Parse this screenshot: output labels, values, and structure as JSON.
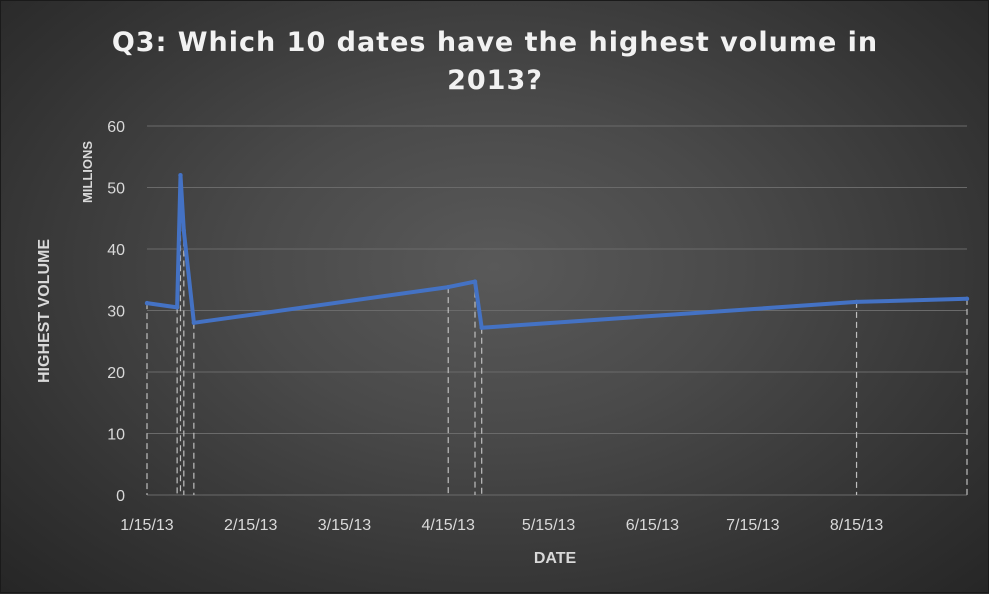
{
  "chart_data": {
    "type": "line",
    "title_lines": [
      "Q3: Which 10 dates have the highest volume in",
      "2013?"
    ],
    "xlabel": "DATE",
    "ylabel": "HIGHEST VOLUME",
    "y_units": "MILLIONS",
    "ylim": [
      0,
      60
    ],
    "y_ticks": [
      0,
      10,
      20,
      30,
      40,
      50,
      60
    ],
    "x_ticks": [
      "1/15/13",
      "2/15/13",
      "3/15/13",
      "4/15/13",
      "5/15/13",
      "6/15/13",
      "7/15/13",
      "8/15/13"
    ],
    "grid": "horizontal",
    "drop_lines": true,
    "colors": {
      "series": "#4472c4",
      "background": "#404040",
      "text": "#d9d9d9"
    },
    "series": [
      {
        "points": [
          {
            "x": "2013-01-15",
            "y": 31.2
          },
          {
            "x": "2013-01-24",
            "y": 30.5
          },
          {
            "x": "2013-01-25",
            "y": 52.0
          },
          {
            "x": "2013-01-26",
            "y": 43.0
          },
          {
            "x": "2013-01-29",
            "y": 28.0
          },
          {
            "x": "2013-04-15",
            "y": 33.8
          },
          {
            "x": "2013-04-23",
            "y": 34.7
          },
          {
            "x": "2013-04-25",
            "y": 27.2
          },
          {
            "x": "2013-08-15",
            "y": 31.4
          },
          {
            "x": "2013-09-17",
            "y": 31.9
          }
        ]
      }
    ]
  }
}
